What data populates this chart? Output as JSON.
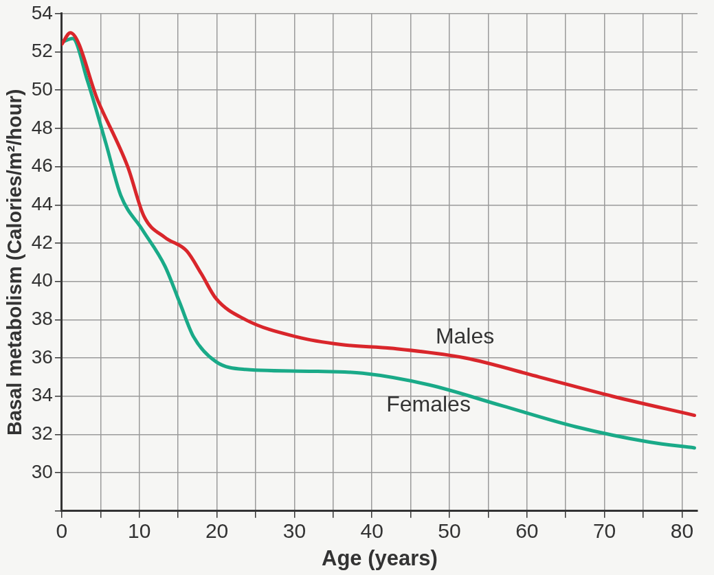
{
  "chart_data": {
    "type": "line",
    "xlabel": "Age (years)",
    "ylabel": "Basal metabolism (Calories/m²/hour)",
    "xlim": [
      0,
      82
    ],
    "xticks": [
      0,
      {
        "value": 5,
        "label": null
      },
      10,
      {
        "value": 15,
        "label": null
      },
      20,
      {
        "value": 25,
        "label": null
      },
      30,
      {
        "value": 35,
        "label": null
      },
      40,
      {
        "value": 45,
        "label": null
      },
      50,
      {
        "value": 55,
        "label": null
      },
      60,
      {
        "value": 65,
        "label": null
      },
      70,
      {
        "value": 75,
        "label": null
      },
      80
    ],
    "ylim": [
      28,
      54
    ],
    "yticks": [
      {
        "value": 28,
        "label": null
      },
      30,
      32,
      34,
      36,
      38,
      40,
      42,
      44,
      46,
      48,
      50,
      52,
      54
    ],
    "grid": true,
    "legend": false,
    "marker": "none",
    "line_style": "solid",
    "series": [
      {
        "name": "Males",
        "color": "#d9262b",
        "x": [
          0,
          1.1,
          4.7,
          8.5,
          10.6,
          13.3,
          16.1,
          18,
          19.9,
          23.7,
          30.3,
          36,
          42.6,
          52,
          61.6,
          71,
          81.6
        ],
        "values": [
          52.4,
          53.0,
          49.4,
          46.0,
          43.4,
          42.3,
          41.6,
          40.4,
          39.1,
          38.0,
          37.1,
          36.7,
          36.5,
          36.0,
          35.0,
          34.0,
          33.0
        ]
      },
      {
        "name": "Females",
        "color": "#1aaa88",
        "x": [
          0,
          1.4,
          3.3,
          5.7,
          7.6,
          10.4,
          13.3,
          15.2,
          17,
          19.9,
          23.7,
          33,
          38.8,
          47.3,
          56.8,
          66.3,
          75.8,
          81.6
        ],
        "values": [
          52.5,
          52.7,
          50.5,
          47.2,
          44.5,
          42.7,
          40.8,
          38.9,
          37.1,
          35.8,
          35.4,
          35.3,
          35.2,
          34.6,
          33.5,
          32.4,
          31.6,
          31.3
        ]
      }
    ]
  }
}
